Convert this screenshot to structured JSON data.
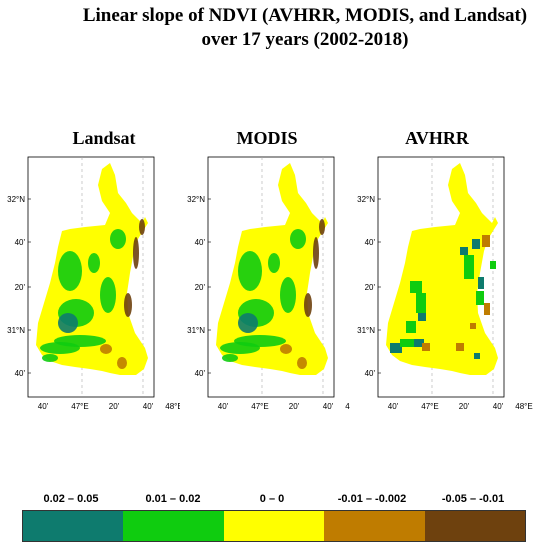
{
  "title": {
    "line1": "Linear slope of NDVI (AVHRR, MODIS, and Landsat)",
    "line2": "over 17 years (2002-2018)"
  },
  "panels": [
    {
      "name": "Landsat"
    },
    {
      "name": "MODIS"
    },
    {
      "name": "AVHRR"
    }
  ],
  "axis": {
    "lat_labels": [
      "32°N",
      "40'",
      "20'",
      "31°N",
      "40'"
    ],
    "lon_labels": [
      "40'",
      "47°E",
      "20'",
      "40'",
      "48°E"
    ]
  },
  "legend": {
    "items": [
      {
        "label": "0.02 – 0.05",
        "color": "#0e7b6e"
      },
      {
        "label": "0.01 – 0.02",
        "color": "#0fcc0f"
      },
      {
        "label": "0 – 0",
        "color": "#ffff00"
      },
      {
        "label": "-0.01 – -0.002",
        "color": "#bf7c00"
      },
      {
        "label": "-0.05 – -0.01",
        "color": "#6e410e"
      }
    ]
  }
}
